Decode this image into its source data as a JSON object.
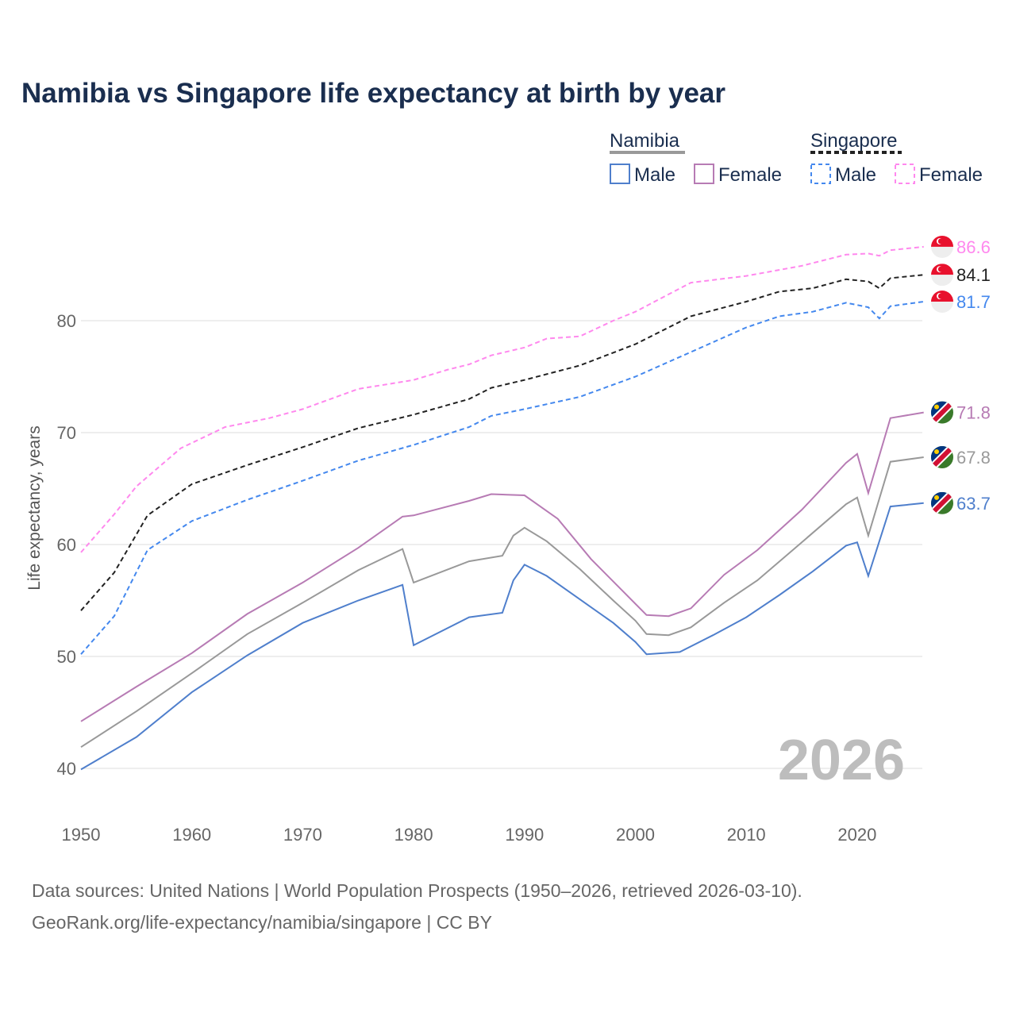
{
  "chart_data": {
    "type": "line",
    "title": "Namibia vs Singapore life expectancy at birth by year",
    "xlabel": "",
    "ylabel": "Life expectancy, years",
    "xlim": [
      1950,
      2026
    ],
    "ylim": [
      36,
      90
    ],
    "x_ticks": [
      1950,
      1960,
      1970,
      1980,
      1990,
      2000,
      2010,
      2020
    ],
    "y_ticks": [
      40,
      50,
      60,
      70,
      80
    ],
    "grid": true,
    "year_watermark": "2026",
    "legend": {
      "groups": [
        {
          "label": "Namibia",
          "color": "#999999",
          "dash": false,
          "items": [
            {
              "label": "Male",
              "color": "#4f7fcc"
            },
            {
              "label": "Female",
              "color": "#b77bb4"
            }
          ]
        },
        {
          "label": "Singapore",
          "color": "#222222",
          "dash": true,
          "items": [
            {
              "label": "Male",
              "color": "#4488ee"
            },
            {
              "label": "Female",
              "color": "#ff88ee"
            }
          ]
        }
      ]
    },
    "series": [
      {
        "name": "Singapore Female",
        "color": "#ff88ee",
        "dash": true,
        "country": "singapore",
        "end_label": "86.6",
        "x": [
          1950,
          1953,
          1955,
          1959,
          1963,
          1967,
          1970,
          1975,
          1980,
          1983,
          1985,
          1987,
          1990,
          1992,
          1995,
          1998,
          2000,
          2005,
          2010,
          2015,
          2019,
          2021,
          2022,
          2023,
          2026
        ],
        "y": [
          59.3,
          62.7,
          65.2,
          68.6,
          70.5,
          71.3,
          72.1,
          73.9,
          74.7,
          75.6,
          76.1,
          76.9,
          77.6,
          78.4,
          78.6,
          80.0,
          80.8,
          83.4,
          84.0,
          84.9,
          85.9,
          86.0,
          85.8,
          86.3,
          86.6
        ]
      },
      {
        "name": "Singapore Total",
        "color": "#222222",
        "dash": true,
        "country": "singapore",
        "end_label": "84.1",
        "x": [
          1950,
          1953,
          1956,
          1960,
          1965,
          1970,
          1975,
          1980,
          1985,
          1987,
          1990,
          1995,
          2000,
          2005,
          2010,
          2013,
          2016,
          2019,
          2021,
          2022,
          2023,
          2026
        ],
        "y": [
          54.1,
          57.5,
          62.6,
          65.4,
          67.1,
          68.7,
          70.4,
          71.6,
          73.0,
          74.0,
          74.7,
          76.0,
          77.9,
          80.4,
          81.7,
          82.6,
          82.9,
          83.7,
          83.5,
          82.9,
          83.8,
          84.1
        ]
      },
      {
        "name": "Singapore Male",
        "color": "#4488ee",
        "dash": true,
        "country": "singapore",
        "end_label": "81.7",
        "x": [
          1950,
          1953,
          1956,
          1960,
          1965,
          1970,
          1975,
          1980,
          1985,
          1987,
          1990,
          1995,
          2000,
          2005,
          2010,
          2013,
          2016,
          2019,
          2021,
          2022,
          2023,
          2026
        ],
        "y": [
          50.2,
          53.6,
          59.5,
          62.1,
          64.0,
          65.7,
          67.5,
          68.9,
          70.5,
          71.5,
          72.1,
          73.2,
          75.0,
          77.2,
          79.4,
          80.4,
          80.8,
          81.6,
          81.2,
          80.2,
          81.3,
          81.7
        ]
      },
      {
        "name": "Namibia Female",
        "color": "#b77bb4",
        "dash": false,
        "country": "namibia",
        "end_label": "71.8",
        "x": [
          1950,
          1955,
          1960,
          1965,
          1970,
          1975,
          1979,
          1980,
          1985,
          1987,
          1990,
          1993,
          1996,
          1999,
          2001,
          2003,
          2005,
          2008,
          2011,
          2015,
          2019,
          2020,
          2021,
          2023,
          2026
        ],
        "y": [
          44.2,
          47.3,
          50.3,
          53.8,
          56.6,
          59.7,
          62.5,
          62.6,
          63.9,
          64.5,
          64.4,
          62.3,
          58.7,
          55.7,
          53.7,
          53.6,
          54.3,
          57.3,
          59.5,
          63.1,
          67.3,
          68.1,
          64.6,
          71.3,
          71.8
        ]
      },
      {
        "name": "Namibia Total",
        "color": "#999999",
        "dash": false,
        "country": "namibia",
        "end_label": "67.8",
        "x": [
          1950,
          1955,
          1960,
          1965,
          1970,
          1975,
          1979,
          1980,
          1985,
          1988,
          1989,
          1990,
          1992,
          1995,
          1998,
          2000,
          2001,
          2003,
          2005,
          2008,
          2011,
          2015,
          2019,
          2020,
          2021,
          2023,
          2026
        ],
        "y": [
          41.9,
          45.1,
          48.5,
          52.0,
          54.8,
          57.7,
          59.6,
          56.6,
          58.5,
          59.0,
          60.8,
          61.5,
          60.3,
          57.8,
          55.0,
          53.2,
          52.0,
          51.9,
          52.6,
          54.8,
          56.8,
          60.2,
          63.6,
          64.2,
          60.8,
          67.4,
          67.8
        ]
      },
      {
        "name": "Namibia Male",
        "color": "#4f7fcc",
        "dash": false,
        "country": "namibia",
        "end_label": "63.7",
        "x": [
          1950,
          1955,
          1960,
          1965,
          1970,
          1975,
          1979,
          1980,
          1985,
          1988,
          1989,
          1990,
          1992,
          1995,
          1998,
          2000,
          2001,
          2004,
          2007,
          2010,
          2013,
          2016,
          2019,
          2020,
          2021,
          2023,
          2026
        ],
        "y": [
          39.9,
          42.8,
          46.8,
          50.1,
          53.0,
          55.0,
          56.4,
          51.0,
          53.5,
          53.9,
          56.8,
          58.2,
          57.2,
          55.1,
          53.0,
          51.3,
          50.2,
          50.4,
          51.9,
          53.5,
          55.5,
          57.6,
          59.9,
          60.2,
          57.2,
          63.4,
          63.7
        ]
      }
    ]
  },
  "footer": {
    "line1": "Data sources: United Nations | World Population Prospects (1950–2026, retrieved 2026-03-10).",
    "line2": "GeoRank.org/life-expectancy/namibia/singapore | CC BY"
  }
}
